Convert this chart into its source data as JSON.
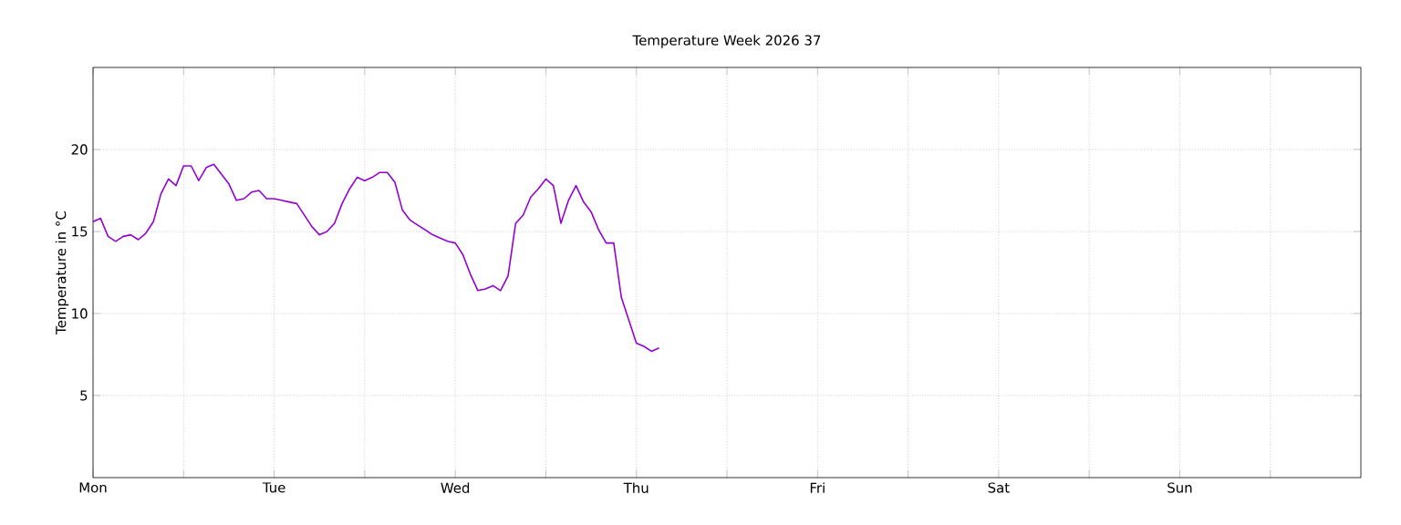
{
  "chart_data": {
    "type": "line",
    "title": "Temperature Week 2026 37",
    "ylabel": "Temperature in °C",
    "categories": [
      "Mon",
      null,
      null,
      null,
      null,
      null,
      null,
      null,
      null,
      null,
      null,
      null,
      null,
      null,
      null,
      null,
      null,
      null,
      null,
      null,
      null,
      null,
      null,
      null,
      "Tue",
      null,
      null,
      null,
      null,
      null,
      null,
      null,
      null,
      null,
      null,
      null,
      null,
      null,
      null,
      null,
      null,
      null,
      null,
      null,
      null,
      null,
      null,
      null,
      "Wed",
      null,
      null,
      null,
      null,
      null,
      null,
      null,
      null,
      null,
      null,
      null,
      null,
      null,
      null,
      null,
      null,
      null,
      null,
      null,
      null,
      null,
      null,
      null,
      "Thu",
      null,
      null,
      null,
      null,
      null,
      null,
      null,
      null,
      null,
      null,
      null,
      null,
      null,
      null,
      null,
      null,
      null,
      null,
      null,
      null,
      null,
      null,
      null,
      "Fri",
      null,
      null,
      null,
      null,
      null,
      null,
      null,
      null,
      null,
      null,
      null,
      null,
      null,
      null,
      null,
      null,
      null,
      null,
      null,
      null,
      null,
      null,
      null,
      "Sat",
      null,
      null,
      null,
      null,
      null,
      null,
      null,
      null,
      null,
      null,
      null,
      null,
      null,
      null,
      null,
      null,
      null,
      null,
      null,
      null,
      null,
      null,
      null,
      "Sun",
      null,
      null,
      null,
      null,
      null,
      null,
      null,
      null,
      null,
      null,
      null,
      null,
      null,
      null,
      null,
      null,
      null,
      null,
      null,
      null,
      null,
      null,
      null
    ],
    "series": [
      {
        "color": "#9400d3",
        "values": [
          15.6,
          15.8,
          14.7,
          14.4,
          14.7,
          14.8,
          14.5,
          14.9,
          15.6,
          17.3,
          18.2,
          17.8,
          19.0,
          19.0,
          18.1,
          18.9,
          19.1,
          18.5,
          17.9,
          16.9,
          17.0,
          17.4,
          17.5,
          17.0,
          17.0,
          16.9,
          16.8,
          16.7,
          16.0,
          15.3,
          14.8,
          15.0,
          15.5,
          16.7,
          17.6,
          18.3,
          18.1,
          18.3,
          18.6,
          18.6,
          18.0,
          16.3,
          15.7,
          15.4,
          15.1,
          14.8,
          14.6,
          14.4,
          14.3,
          13.6,
          12.4,
          11.4,
          11.5,
          11.7,
          11.4,
          12.3,
          15.5,
          16.0,
          17.1,
          17.6,
          18.2,
          17.8,
          15.5,
          16.9,
          17.8,
          16.8,
          16.2,
          15.1,
          14.3,
          14.3,
          11.0,
          9.6,
          8.2,
          8.0,
          7.7,
          7.9,
          null,
          null,
          null,
          null,
          null,
          null,
          null,
          null,
          null,
          null,
          null,
          null,
          null,
          null,
          null,
          null,
          null,
          null,
          null,
          null,
          null,
          null,
          null,
          null,
          null,
          null,
          null,
          null,
          null,
          null,
          null,
          null,
          null,
          null,
          null,
          null,
          null,
          null,
          null,
          null,
          null,
          null,
          null,
          null,
          null,
          null,
          null,
          null,
          null,
          null,
          null,
          null,
          null,
          null,
          null,
          null,
          null,
          null,
          null,
          null,
          null,
          null,
          null,
          null,
          null,
          null,
          null,
          null,
          null,
          null,
          null,
          null,
          null,
          null,
          null,
          null,
          null,
          null,
          null,
          null,
          null,
          null,
          null,
          null,
          null,
          null,
          null,
          null,
          null,
          null,
          null,
          null
        ]
      }
    ],
    "ylim": [
      0,
      25
    ],
    "yticks": [
      5,
      10,
      15,
      20
    ],
    "grid": true,
    "marker": "none",
    "line_style": "solid"
  }
}
